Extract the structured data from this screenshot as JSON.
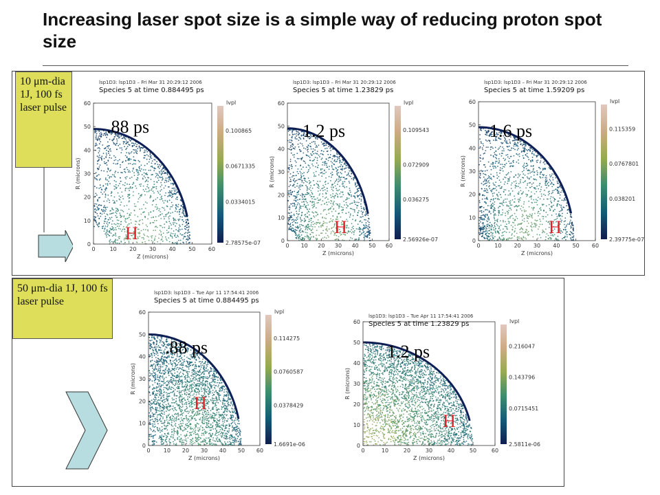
{
  "slide": {
    "title": "Increasing laser spot size is a simple way of reducing proton spot size"
  },
  "top_row": {
    "note": "10 μm-dia 1J, 100 fs laser pulse",
    "panels": [
      {
        "header": "lsp1D3: lsp1D3 – Fri Mar 31 20:29:12 2006",
        "species": "Species 5 at time   0.884495 ps",
        "time_label": ".88 ps",
        "marker": "H",
        "legend_title": "lvpl",
        "cbar": [
          "0.100865",
          "0.0671335",
          "0.0334015",
          "2.78575e-07"
        ]
      },
      {
        "header": "lsp1D3: lsp1D3 – Fri Mar 31 20:29:12 2006",
        "species": "Species 5 at time   1.23829 ps",
        "time_label": "1.2 ps",
        "marker": "H",
        "legend_title": "lvpl",
        "cbar": [
          "0.109543",
          "0.072909",
          "0.036275",
          "2.56926e-07"
        ]
      },
      {
        "header": "lsp1D3: lsp1D3 – Fri Mar 31 20:29:12 2006",
        "species": "Species 5 at time   1.59209 ps",
        "time_label": "1.6 ps",
        "marker": "H",
        "legend_title": "lvpl",
        "cbar": [
          "0.115359",
          "0.0767801",
          "0.038201",
          "2.39775e-07"
        ]
      }
    ]
  },
  "bottom_row": {
    "note": "50 μm-dia 1J, 100 fs laser pulse",
    "panels": [
      {
        "header": "lsp1D3: lsp1D3 – Tue Apr 11 17:54:41 2006",
        "species": "Species 5 at time   0.884495 ps",
        "time_label": ".88 ps",
        "marker": "H",
        "legend_title": "lvpl",
        "cbar": [
          "0.114275",
          "0.0760587",
          "0.0378429",
          "1.6691e-06"
        ]
      },
      {
        "header": "lsp1D3: lsp1D3 – Tue Apr 11 17:54:41 2006",
        "species": "Species 5 at time   1.23829 ps",
        "time_label": "1.2 ps",
        "marker": "H",
        "legend_title": "lvpl",
        "cbar": [
          "0.216047",
          "0.143796",
          "0.0715451",
          "2.5811e-06"
        ]
      }
    ]
  },
  "axes": {
    "xlabel": "Z (microns)",
    "ylabel": "R (microns)",
    "xticks": [
      "0",
      "10",
      "20",
      "30",
      "40",
      "50",
      "60"
    ],
    "yticks": [
      "0",
      "10",
      "20",
      "30",
      "40",
      "50",
      "60"
    ]
  },
  "colors": {
    "note_bg": "#dede5a",
    "marker": "#e0202a",
    "arrow_fill": "#b8dde0"
  }
}
